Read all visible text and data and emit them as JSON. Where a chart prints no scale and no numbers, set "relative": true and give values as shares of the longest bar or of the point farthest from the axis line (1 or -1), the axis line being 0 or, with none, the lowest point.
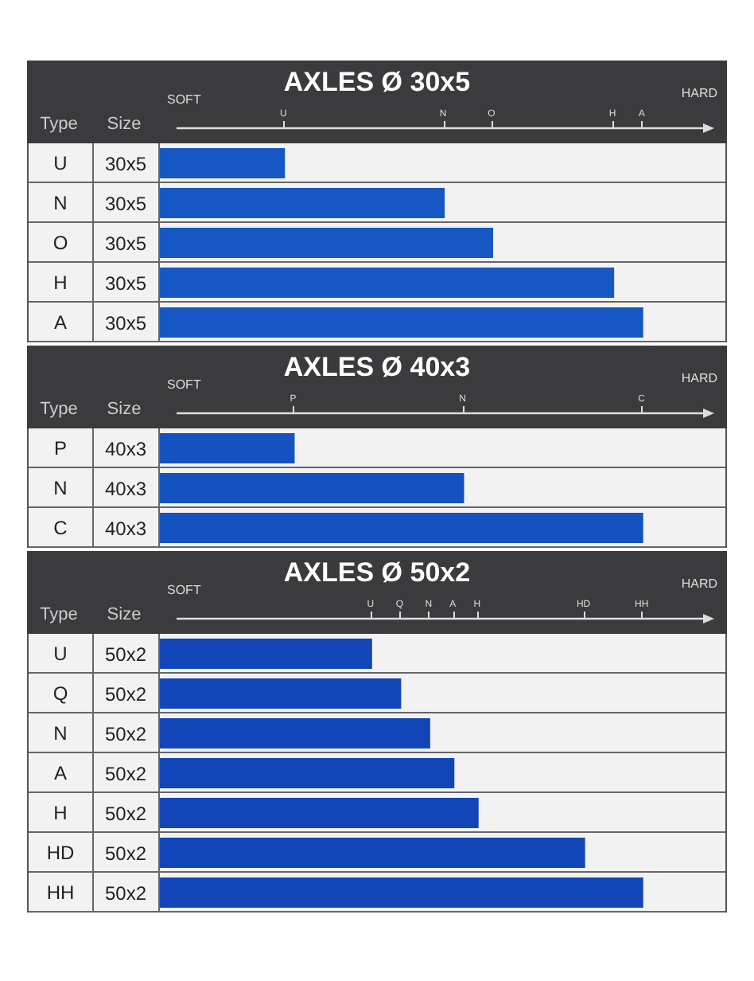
{
  "chart_data": [
    {
      "type": "bar",
      "orientation": "horizontal",
      "relative": true,
      "title": "AXLES Ø 30x5",
      "categories": [
        "U",
        "N",
        "O",
        "H",
        "A"
      ],
      "values": [
        0.26,
        0.59,
        0.69,
        0.94,
        1
      ],
      "color": "#1558c4",
      "annotations": [
        "Type",
        "Size",
        "SOFT",
        "HARD",
        "30x5",
        "30x5",
        "30x5",
        "30x5",
        "30x5",
        "U",
        "N",
        "O",
        "H",
        "A"
      ]
    },
    {
      "type": "bar",
      "orientation": "horizontal",
      "relative": true,
      "title": "AXLES Ø 40x3",
      "categories": [
        "P",
        "N",
        "C"
      ],
      "values": [
        0.28,
        0.63,
        1
      ],
      "color": "#1452c0",
      "annotations": [
        "Type",
        "Size",
        "SOFT",
        "HARD",
        "40x3",
        "40x3",
        "40x3",
        "P",
        "N",
        "C"
      ]
    },
    {
      "type": "bar",
      "orientation": "horizontal",
      "relative": true,
      "title": "AXLES Ø 50x2",
      "categories": [
        "U",
        "Q",
        "N",
        "A",
        "H",
        "HD",
        "HH"
      ],
      "values": [
        0.44,
        0.5,
        0.56,
        0.61,
        0.66,
        0.88,
        1
      ],
      "color": "#1246b8",
      "annotations": [
        "Type",
        "Size",
        "SOFT",
        "HARD",
        "50x2",
        "50x2",
        "50x2",
        "50x2",
        "50x2",
        "50x2",
        "50x2",
        "U",
        "Q",
        "N",
        "A",
        "H",
        "HD",
        "HH"
      ]
    }
  ]
}
